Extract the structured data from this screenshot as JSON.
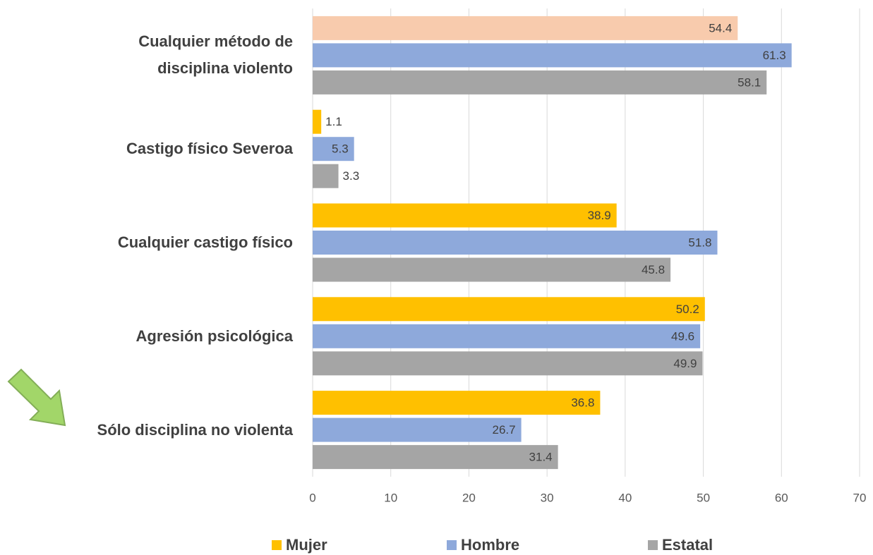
{
  "chart_data": {
    "type": "hbar",
    "categories": [
      "Cualquier método de\ndisciplina violento",
      "Castigo físico Severoa",
      "Cualquier castigo físico",
      "Agresión psicológica",
      "Sólo disciplina no violenta"
    ],
    "series": [
      {
        "name": "Mujer",
        "color": "#FFC000",
        "colors": [
          "#F8CBAD",
          "#FFC000",
          "#FFC000",
          "#FFC000",
          "#FFC000"
        ],
        "values": [
          54.4,
          1.1,
          38.9,
          50.2,
          36.8
        ]
      },
      {
        "name": "Hombre",
        "color": "#8EA9DB",
        "values": [
          61.3,
          5.3,
          51.8,
          49.6,
          26.7
        ]
      },
      {
        "name": "Estatal",
        "color": "#A5A5A5",
        "values": [
          58.1,
          3.3,
          45.8,
          49.9,
          31.4
        ]
      }
    ],
    "xlim": [
      0,
      70
    ],
    "xticks": [
      0,
      10,
      20,
      30,
      40,
      50,
      60,
      70
    ],
    "grid": true
  }
}
